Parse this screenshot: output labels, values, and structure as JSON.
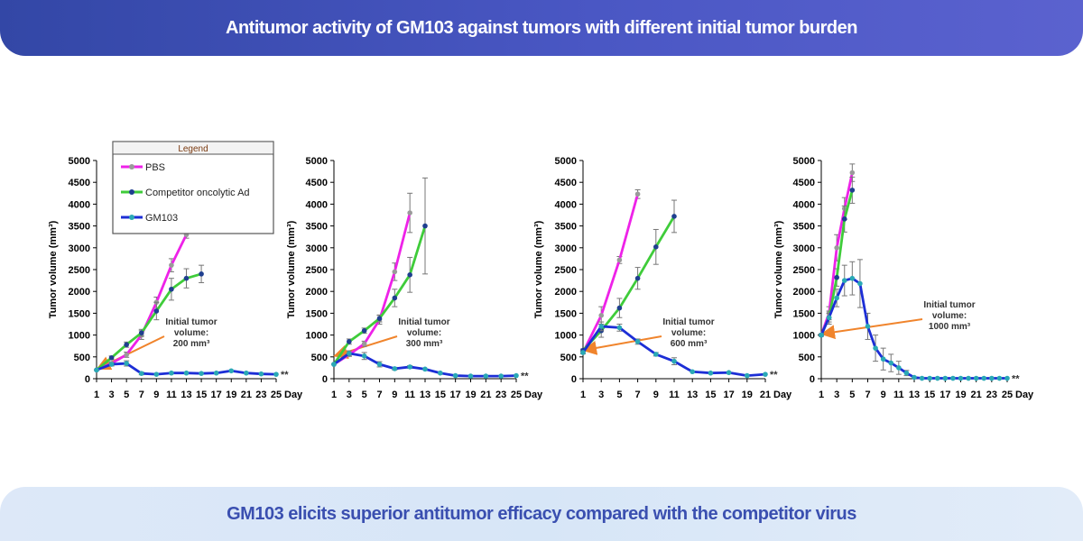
{
  "header": {
    "title": "Antitumor activity of GM103 against tumors with different initial tumor burden"
  },
  "footer": {
    "caption": "GM103 elicits superior antitumor efficacy compared with the competitor virus"
  },
  "colors": {
    "pbs": "#ee22e8",
    "pbs_marker": "#9a9a9a",
    "competitor": "#3fcc3a",
    "competitor_marker": "#1f3f8f",
    "gm103": "#1c2ed6",
    "gm103_marker": "#2aa9b5",
    "arrow": "#f0842c"
  },
  "legend": {
    "title": "Legend",
    "items": [
      "PBS",
      "Competitor oncolytic Ad",
      "GM103"
    ]
  },
  "chart_data": [
    {
      "type": "line",
      "ylabel": "Tumor volume (mm³)",
      "xlabel": "Day",
      "ylim": [
        0,
        5000
      ],
      "yticks": [
        0,
        500,
        1000,
        1500,
        2000,
        2500,
        3000,
        3500,
        4000,
        4500,
        5000
      ],
      "xticks": [
        1,
        3,
        5,
        7,
        9,
        11,
        13,
        15,
        17,
        19,
        21,
        23,
        25
      ],
      "xlim": [
        1,
        25
      ],
      "annotation": {
        "lines": [
          "Initial tumor",
          "volume:",
          "200 mm³"
        ],
        "value": 200
      },
      "significance": "**",
      "series": [
        {
          "name": "PBS",
          "x": [
            1,
            3,
            5,
            7,
            9,
            11,
            13
          ],
          "y": [
            200,
            350,
            550,
            1000,
            1750,
            2600,
            3300
          ],
          "err": [
            20,
            40,
            60,
            100,
            120,
            150,
            80
          ]
        },
        {
          "name": "Competitor oncolytic Ad",
          "x": [
            1,
            3,
            5,
            7,
            9,
            11,
            13,
            15
          ],
          "y": [
            200,
            480,
            780,
            1050,
            1550,
            2050,
            2300,
            2400
          ],
          "err": [
            20,
            40,
            60,
            80,
            200,
            250,
            220,
            200
          ]
        },
        {
          "name": "GM103",
          "x": [
            1,
            3,
            5,
            7,
            9,
            11,
            13,
            15,
            17,
            19,
            21,
            23,
            25
          ],
          "y": [
            200,
            330,
            350,
            120,
            100,
            130,
            130,
            120,
            130,
            180,
            130,
            110,
            100
          ],
          "err": [
            20,
            40,
            60,
            30,
            20,
            20,
            20,
            20,
            20,
            20,
            20,
            20,
            20
          ]
        }
      ]
    },
    {
      "type": "line",
      "ylabel": "Tumor volume (mm³)",
      "xlabel": "Day",
      "ylim": [
        0,
        5000
      ],
      "yticks": [
        0,
        500,
        1000,
        1500,
        2000,
        2500,
        3000,
        3500,
        4000,
        4500,
        5000
      ],
      "xticks": [
        1,
        3,
        5,
        7,
        9,
        11,
        13,
        15,
        17,
        19,
        21,
        23,
        25
      ],
      "xlim": [
        1,
        25
      ],
      "annotation": {
        "lines": [
          "Initial tumor",
          "volume:",
          "300 mm³"
        ],
        "value": 300
      },
      "significance": "**",
      "series": [
        {
          "name": "PBS",
          "x": [
            1,
            3,
            5,
            7,
            9,
            11
          ],
          "y": [
            330,
            550,
            800,
            1350,
            2450,
            3800
          ],
          "err": [
            20,
            40,
            60,
            100,
            200,
            450
          ]
        },
        {
          "name": "Competitor oncolytic Ad",
          "x": [
            1,
            3,
            5,
            7,
            9,
            11,
            13
          ],
          "y": [
            330,
            850,
            1100,
            1380,
            1850,
            2380,
            3500
          ],
          "err": [
            20,
            60,
            60,
            80,
            200,
            400,
            1100
          ]
        },
        {
          "name": "GM103",
          "x": [
            1,
            3,
            5,
            7,
            9,
            11,
            13,
            15,
            17,
            19,
            21,
            23,
            25
          ],
          "y": [
            330,
            580,
            520,
            330,
            230,
            270,
            220,
            130,
            70,
            60,
            60,
            60,
            70
          ],
          "err": [
            20,
            60,
            80,
            60,
            30,
            30,
            20,
            20,
            10,
            10,
            10,
            10,
            10
          ]
        }
      ]
    },
    {
      "type": "line",
      "ylabel": "Tumor volume (mm³)",
      "xlabel": "Day",
      "ylim": [
        0,
        5000
      ],
      "yticks": [
        0,
        500,
        1000,
        1500,
        2000,
        2500,
        3000,
        3500,
        4000,
        4500,
        5000
      ],
      "xticks": [
        1,
        3,
        5,
        7,
        9,
        11,
        13,
        15,
        17,
        19,
        21
      ],
      "xlim": [
        1,
        21
      ],
      "annotation": {
        "lines": [
          "Initial tumor",
          "volume:",
          "600 mm³"
        ],
        "value": 600
      },
      "significance": "**",
      "series": [
        {
          "name": "PBS",
          "x": [
            1,
            3,
            5,
            7
          ],
          "y": [
            600,
            1450,
            2720,
            4230
          ],
          "err": [
            30,
            200,
            80,
            100
          ]
        },
        {
          "name": "Competitor oncolytic Ad",
          "x": [
            1,
            3,
            5,
            7,
            9,
            11
          ],
          "y": [
            650,
            1100,
            1620,
            2300,
            3020,
            3720
          ],
          "err": [
            30,
            150,
            220,
            250,
            400,
            370
          ]
        },
        {
          "name": "GM103",
          "x": [
            1,
            3,
            5,
            7,
            9,
            11,
            13,
            15,
            17,
            19,
            21
          ],
          "y": [
            600,
            1200,
            1170,
            850,
            560,
            400,
            160,
            130,
            140,
            70,
            100
          ],
          "err": [
            30,
            100,
            80,
            60,
            40,
            80,
            20,
            20,
            20,
            10,
            10
          ]
        }
      ]
    },
    {
      "type": "line",
      "ylabel": "Tumor volume (mm³)",
      "xlabel": "Day",
      "ylim": [
        0,
        5000
      ],
      "yticks": [
        0,
        500,
        1000,
        1500,
        2000,
        2500,
        3000,
        3500,
        4000,
        4500,
        5000
      ],
      "xticks": [
        1,
        3,
        5,
        7,
        9,
        11,
        13,
        15,
        17,
        19,
        21,
        23,
        25
      ],
      "xlim": [
        1,
        25
      ],
      "annotation": {
        "lines": [
          "Initial tumor",
          "volume:",
          "1000 mm³"
        ],
        "value": 1000
      },
      "significance": "**",
      "series": [
        {
          "name": "PBS",
          "x": [
            1,
            2,
            3,
            4,
            5
          ],
          "y": [
            1000,
            1500,
            3000,
            3900,
            4720
          ],
          "err": [
            30,
            150,
            300,
            250,
            200
          ]
        },
        {
          "name": "Competitor oncolytic Ad",
          "x": [
            1,
            2,
            3,
            4,
            5
          ],
          "y": [
            1000,
            1400,
            2320,
            3660,
            4320
          ],
          "err": [
            30,
            150,
            200,
            300,
            300
          ]
        },
        {
          "name": "GM103",
          "x": [
            1,
            2,
            3,
            4,
            5,
            6,
            7,
            8,
            9,
            10,
            11,
            12,
            13,
            14,
            15,
            16,
            17,
            18,
            19,
            20,
            21,
            22,
            23,
            24,
            25
          ],
          "y": [
            1000,
            1400,
            1850,
            2250,
            2300,
            2180,
            1200,
            700,
            450,
            360,
            250,
            130,
            30,
            10,
            10,
            10,
            10,
            10,
            10,
            10,
            10,
            10,
            10,
            10,
            10
          ],
          "err": [
            30,
            100,
            200,
            350,
            380,
            550,
            300,
            300,
            250,
            200,
            150,
            60,
            20,
            10,
            5,
            5,
            5,
            5,
            5,
            5,
            5,
            5,
            5,
            5,
            5
          ]
        }
      ]
    }
  ]
}
